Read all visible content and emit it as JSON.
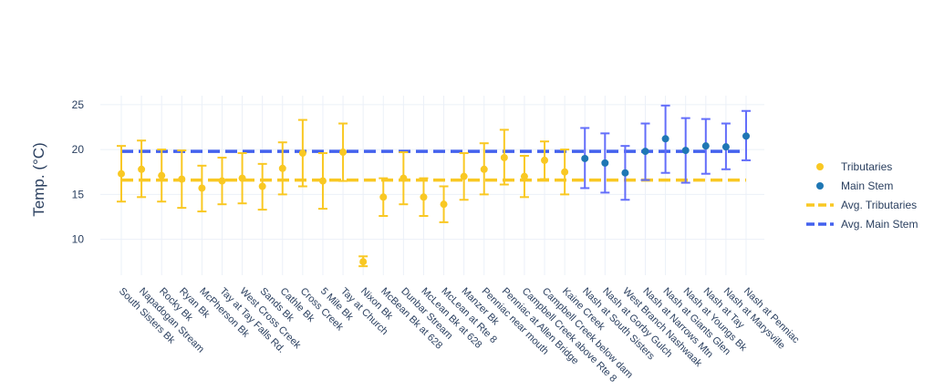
{
  "chart_data": {
    "type": "scatter",
    "title": "",
    "xlabel": "",
    "ylabel": "Temp. (°C)",
    "ylim": [
      6,
      26
    ],
    "yticks": [
      10,
      15,
      20,
      25
    ],
    "grid": true,
    "legend_position": "right",
    "categories": [
      "South Sisters Bk",
      "Napadogan Stream",
      "Rocky Bk",
      "Ryan Bk",
      "McPherson Bk",
      "Tay at Tay Falls Rd.",
      "West Cross Creek",
      "Sands Bk",
      "Cathle Bk",
      "Cross Creek",
      "5 Mile Bk",
      "Tay at Church",
      "Nixon Bk",
      "McBean Bk at 628",
      "Dunbar Stream",
      "McLean Bk at 628",
      "McLean at Rte 8",
      "Manzer Bk",
      "Penniac near mouth",
      "Penniac at Allen Bridge",
      "Campbell Creek above Rte 8",
      "Campbell Creek below dam",
      "Kaine Creek",
      "Nash at South Sisters",
      "Nash at Gorby Gulch",
      "West Branch Nashwaak",
      "Nash at Narrows Mtn",
      "Nash at Giants Glen",
      "Nash at Youngs Bk",
      "Nash at Tay",
      "Nash at Marysville",
      "Nash at Penniac"
    ],
    "series": [
      {
        "name": "Tributaries",
        "color": "#f9c823",
        "start_index": 0,
        "values": [
          17.3,
          17.8,
          17.1,
          16.7,
          15.7,
          16.5,
          16.8,
          15.9,
          17.9,
          19.6,
          16.5,
          19.7,
          7.5,
          14.7,
          16.8,
          14.7,
          13.9,
          17.0,
          17.8,
          19.1,
          17.0,
          18.8,
          17.5
        ],
        "low": [
          14.2,
          14.7,
          14.2,
          13.5,
          13.1,
          13.9,
          14.0,
          13.3,
          15.0,
          15.9,
          13.4,
          16.5,
          7.0,
          12.6,
          13.9,
          12.6,
          11.9,
          14.4,
          15.0,
          16.1,
          14.7,
          16.7,
          15.0
        ],
        "high": [
          20.4,
          21.0,
          20.0,
          19.9,
          18.2,
          19.1,
          19.6,
          18.4,
          20.8,
          23.3,
          19.6,
          22.9,
          8.1,
          16.8,
          19.7,
          16.8,
          15.9,
          19.6,
          20.7,
          22.2,
          19.3,
          20.9,
          20.0
        ]
      },
      {
        "name": "Main Stem",
        "color": "#1f77b4",
        "error_color": "#636efa",
        "start_index": 23,
        "values": [
          19.0,
          18.5,
          17.4,
          19.8,
          21.2,
          19.9,
          20.4,
          20.3,
          21.5
        ],
        "low": [
          15.7,
          15.2,
          14.4,
          16.6,
          17.4,
          16.3,
          17.3,
          17.8,
          18.8
        ],
        "high": [
          22.4,
          21.8,
          20.4,
          22.9,
          24.9,
          23.5,
          23.4,
          22.9,
          24.3
        ]
      }
    ],
    "reference_lines": [
      {
        "name": "Avg. Tributaries",
        "value": 16.6,
        "color": "#f9c823",
        "dash": "dash"
      },
      {
        "name": "Avg. Main Stem",
        "value": 19.8,
        "color": "#4361ee",
        "dash": "dash"
      }
    ]
  }
}
